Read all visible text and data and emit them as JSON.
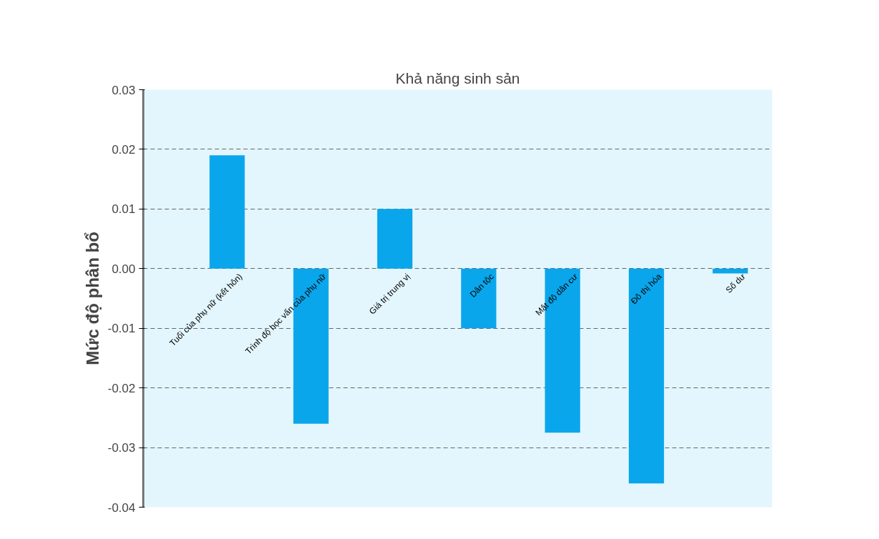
{
  "chart_data": {
    "type": "bar",
    "title": "Khả năng sinh sản",
    "ylabel": "Mức độ phân bổ",
    "categories": [
      "Tuổi của phụ nữ (kết hôn)",
      "Trình độ học vấn của phụ nữ",
      "Giá trị trung vị",
      "Dân tộc",
      "Mật độ dân cư",
      "Đô thị hóa",
      "Số dư"
    ],
    "values": [
      0.019,
      -0.026,
      0.01,
      -0.01,
      -0.0275,
      -0.036,
      -0.0008
    ],
    "color": "#0aa6ec",
    "ylim": [
      -0.04,
      0.03
    ],
    "yticks": [
      {
        "value": 0.03,
        "label": "0.03"
      },
      {
        "value": 0.02,
        "label": "0.02"
      },
      {
        "value": 0.01,
        "label": "0.01"
      },
      {
        "value": 0,
        "label": "0.00"
      },
      {
        "value": -0.01,
        "label": "-0.01"
      },
      {
        "value": -0.02,
        "label": "-0.02"
      },
      {
        "value": -0.03,
        "label": "-0.03"
      },
      {
        "value": -0.04,
        "label": "-0.04"
      }
    ],
    "grid": "y"
  }
}
